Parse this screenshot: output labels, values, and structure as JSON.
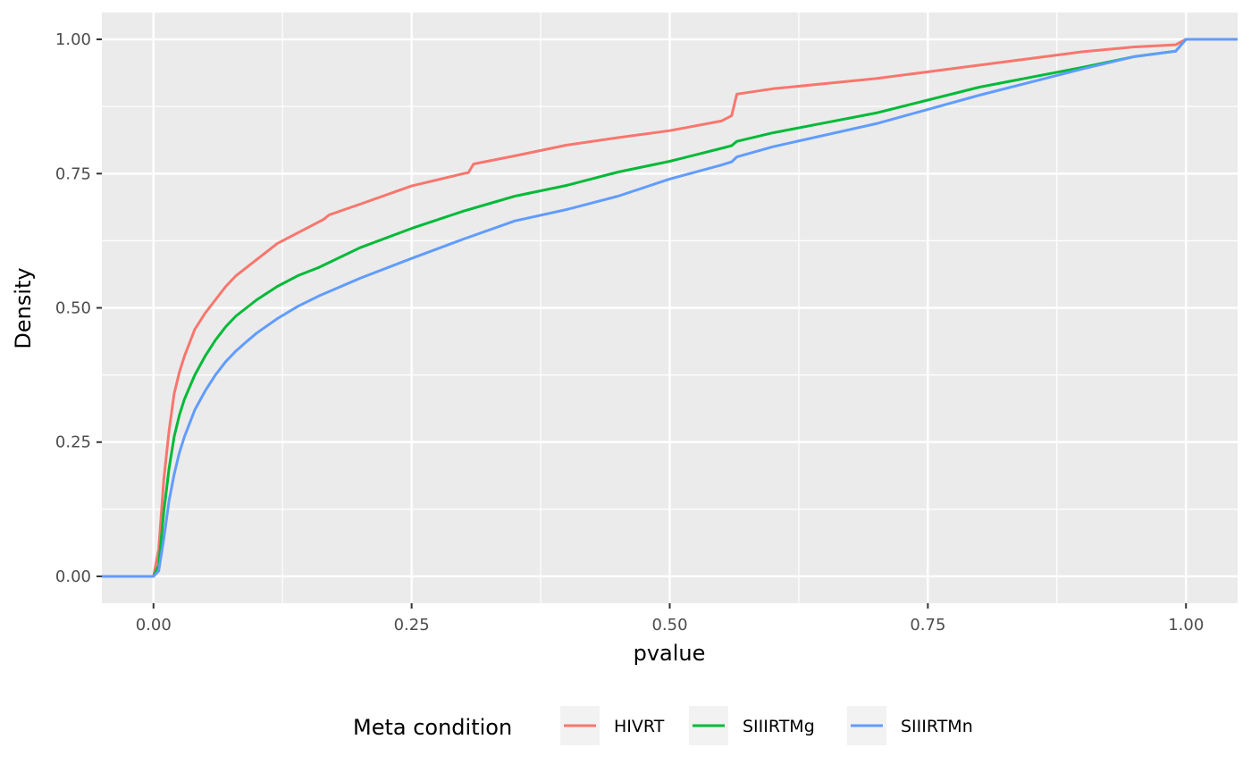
{
  "chart_data": {
    "type": "line",
    "step": true,
    "title": "",
    "xlabel": "pvalue",
    "ylabel": "Density",
    "xlim": [
      -0.05,
      1.05
    ],
    "ylim": [
      -0.05,
      1.05
    ],
    "x_ticks": [
      0.0,
      0.25,
      0.5,
      0.75,
      1.0
    ],
    "x_tick_labels": [
      "0.00",
      "0.25",
      "0.50",
      "0.75",
      "1.00"
    ],
    "y_ticks": [
      0.0,
      0.25,
      0.5,
      0.75,
      1.0
    ],
    "y_tick_labels": [
      "0.00",
      "0.25",
      "0.50",
      "0.75",
      "1.00"
    ],
    "grid": true,
    "panel_background": "#ebebeb",
    "legend": {
      "title": "Meta condition",
      "position": "bottom"
    },
    "series": [
      {
        "name": "HIVRT",
        "color": "#f8766d",
        "x": [
          -0.05,
          0.0,
          0.005,
          0.01,
          0.015,
          0.02,
          0.025,
          0.03,
          0.04,
          0.05,
          0.06,
          0.07,
          0.08,
          0.09,
          0.1,
          0.12,
          0.14,
          0.16,
          0.165,
          0.17,
          0.2,
          0.25,
          0.3,
          0.305,
          0.31,
          0.35,
          0.4,
          0.45,
          0.5,
          0.55,
          0.56,
          0.565,
          0.6,
          0.7,
          0.8,
          0.9,
          0.95,
          0.99,
          1.0,
          1.05
        ],
        "y": [
          0.0,
          0.0,
          0.05,
          0.18,
          0.27,
          0.34,
          0.38,
          0.41,
          0.46,
          0.49,
          0.515,
          0.54,
          0.56,
          0.575,
          0.59,
          0.62,
          0.64,
          0.66,
          0.665,
          0.673,
          0.693,
          0.727,
          0.75,
          0.752,
          0.768,
          0.783,
          0.803,
          0.817,
          0.83,
          0.848,
          0.858,
          0.898,
          0.908,
          0.927,
          0.952,
          0.977,
          0.986,
          0.99,
          1.0,
          1.0
        ]
      },
      {
        "name": "SIIIRTMg",
        "color": "#00ba38",
        "x": [
          -0.05,
          0.0,
          0.005,
          0.01,
          0.015,
          0.02,
          0.025,
          0.03,
          0.04,
          0.05,
          0.06,
          0.07,
          0.08,
          0.09,
          0.1,
          0.12,
          0.14,
          0.16,
          0.2,
          0.25,
          0.3,
          0.35,
          0.4,
          0.45,
          0.5,
          0.55,
          0.56,
          0.565,
          0.6,
          0.7,
          0.8,
          0.9,
          0.95,
          0.99,
          1.0,
          1.05
        ],
        "y": [
          0.0,
          0.0,
          0.02,
          0.12,
          0.2,
          0.26,
          0.3,
          0.33,
          0.375,
          0.41,
          0.44,
          0.465,
          0.485,
          0.5,
          0.515,
          0.54,
          0.56,
          0.575,
          0.612,
          0.648,
          0.68,
          0.708,
          0.728,
          0.753,
          0.773,
          0.797,
          0.802,
          0.81,
          0.826,
          0.863,
          0.911,
          0.948,
          0.968,
          0.978,
          1.0,
          1.0
        ]
      },
      {
        "name": "SIIIRTMn",
        "color": "#619cff",
        "x": [
          -0.05,
          0.0,
          0.005,
          0.01,
          0.015,
          0.02,
          0.025,
          0.03,
          0.04,
          0.05,
          0.06,
          0.07,
          0.08,
          0.09,
          0.1,
          0.12,
          0.14,
          0.16,
          0.2,
          0.25,
          0.3,
          0.35,
          0.4,
          0.45,
          0.5,
          0.55,
          0.56,
          0.565,
          0.6,
          0.7,
          0.8,
          0.9,
          0.95,
          0.99,
          1.0,
          1.05
        ],
        "y": [
          0.0,
          0.0,
          0.01,
          0.07,
          0.14,
          0.19,
          0.23,
          0.26,
          0.31,
          0.345,
          0.375,
          0.4,
          0.42,
          0.437,
          0.453,
          0.48,
          0.503,
          0.522,
          0.555,
          0.592,
          0.628,
          0.662,
          0.683,
          0.708,
          0.74,
          0.766,
          0.772,
          0.781,
          0.8,
          0.843,
          0.896,
          0.945,
          0.968,
          0.978,
          1.0,
          1.0
        ]
      }
    ]
  }
}
